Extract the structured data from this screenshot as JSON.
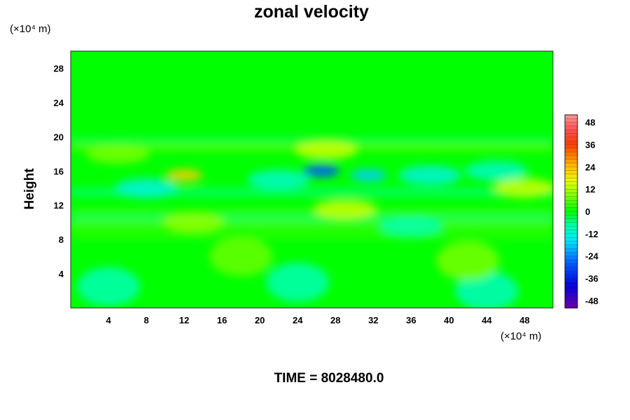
{
  "chart_data": {
    "type": "heatmap",
    "title": "zonal velocity",
    "xlabel": "",
    "ylabel": "Height",
    "x_unit": "(×10⁴ m)",
    "y_unit": "(×10⁴ m)",
    "x_ticks": [
      4,
      8,
      12,
      16,
      20,
      24,
      28,
      32,
      36,
      40,
      44,
      48
    ],
    "y_ticks": [
      4,
      8,
      12,
      16,
      20,
      24,
      28
    ],
    "xlim": [
      0,
      51
    ],
    "ylim": [
      0,
      30
    ],
    "colorbar": {
      "ticks": [
        48,
        36,
        24,
        12,
        0,
        -12,
        -24,
        -36,
        -48
      ],
      "range": [
        -52,
        52
      ]
    },
    "annotation": "TIME = 8028480.0",
    "colors": {
      "background_field": "#00ff00"
    },
    "features": [
      {
        "x": 26.5,
        "y": 16.0,
        "value": -28
      },
      {
        "x": 31.5,
        "y": 15.5,
        "value": -18
      },
      {
        "x": 12.0,
        "y": 15.5,
        "value": 22
      },
      {
        "x": 27.0,
        "y": 18.5,
        "value": 14
      },
      {
        "x": 29.0,
        "y": 11.5,
        "value": 14
      },
      {
        "x": 48.0,
        "y": 14.0,
        "value": 14
      },
      {
        "x": 13.0,
        "y": 10.0,
        "value": 10
      },
      {
        "x": 8.0,
        "y": 14.0,
        "value": -12
      },
      {
        "x": 22.0,
        "y": 15.0,
        "value": -10
      },
      {
        "x": 38.0,
        "y": 15.5,
        "value": -12
      },
      {
        "x": 45.0,
        "y": 16.0,
        "value": -10
      },
      {
        "x": 4.0,
        "y": 2.5,
        "value": -8
      },
      {
        "x": 24.0,
        "y": 3.0,
        "value": -8
      },
      {
        "x": 44.0,
        "y": 2.0,
        "value": -9
      },
      {
        "x": 18.0,
        "y": 6.0,
        "value": 7
      },
      {
        "x": 42.0,
        "y": 5.5,
        "value": 8
      },
      {
        "x": 36.0,
        "y": 9.5,
        "value": -8
      },
      {
        "x": 5.0,
        "y": 18.0,
        "value": 8
      }
    ]
  }
}
